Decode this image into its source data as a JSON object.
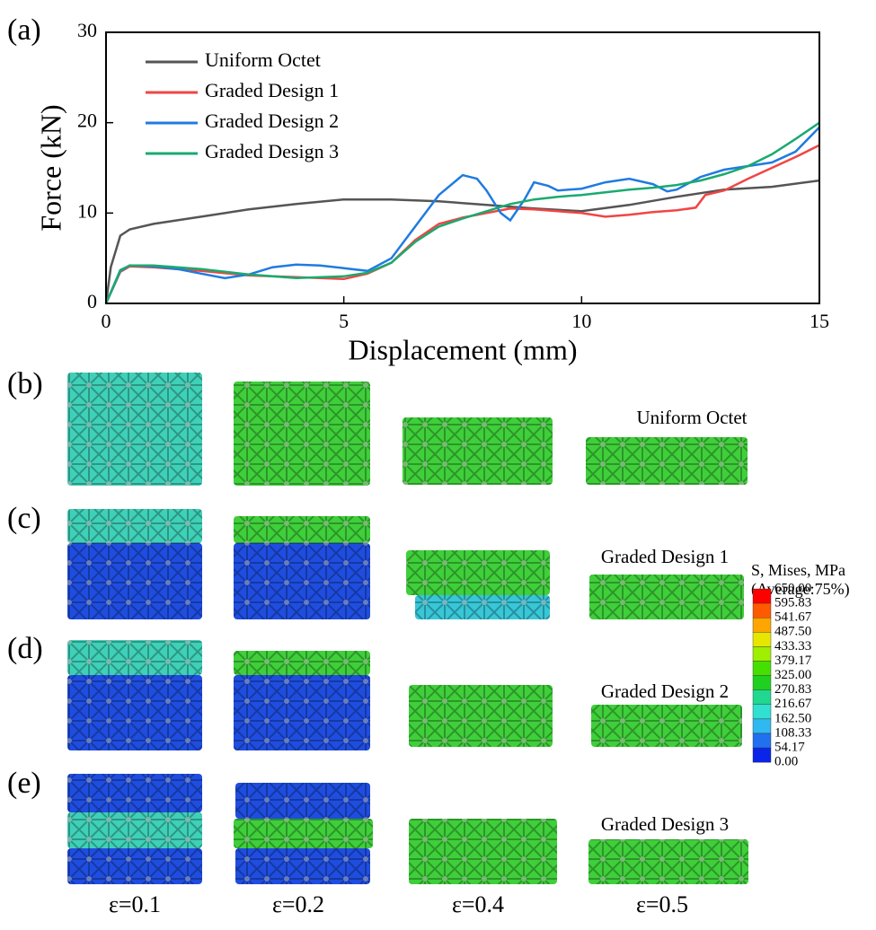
{
  "chart_data": {
    "type": "line",
    "panel_label": "(a)",
    "x_label": "Displacement (mm)",
    "y_label": "Force (kN)",
    "xlim": [
      0,
      15
    ],
    "ylim": [
      0,
      30
    ],
    "xticks": [
      0,
      5,
      10,
      15
    ],
    "yticks": [
      0,
      10,
      20,
      30
    ],
    "legend": "upper left",
    "series": [
      {
        "name": "Uniform Octet",
        "color": "#555555",
        "x": [
          0,
          0.1,
          0.3,
          0.5,
          1,
          2,
          3,
          4,
          5,
          6,
          7,
          8,
          9,
          10,
          11,
          12,
          13,
          14,
          15
        ],
        "values": [
          0,
          4,
          7.5,
          8.2,
          8.8,
          9.6,
          10.4,
          11,
          11.5,
          11.5,
          11.3,
          10.9,
          10.5,
          10.2,
          10.9,
          11.8,
          12.6,
          12.9,
          13.6
        ]
      },
      {
        "name": "Graded Design 1",
        "color": "#f04545",
        "x": [
          0,
          0.3,
          0.5,
          1,
          2,
          3,
          4,
          5,
          5.5,
          6,
          6.5,
          7,
          7.5,
          8,
          8.5,
          9,
          9.5,
          10,
          10.5,
          11,
          11.5,
          12,
          12.4,
          12.6,
          13,
          13.5,
          14,
          14.5,
          15
        ],
        "values": [
          0,
          3.5,
          4.1,
          4.0,
          3.6,
          3.1,
          2.9,
          2.7,
          3.3,
          4.5,
          7,
          8.8,
          9.5,
          10,
          10.5,
          10.4,
          10.2,
          10,
          9.6,
          9.8,
          10.1,
          10.3,
          10.6,
          12,
          12.5,
          13.8,
          15,
          16.2,
          17.5
        ]
      },
      {
        "name": "Graded Design 2",
        "color": "#1f7be0",
        "x": [
          0,
          0.3,
          0.5,
          1,
          1.5,
          2,
          2.5,
          3,
          3.5,
          4,
          4.5,
          5,
          5.5,
          6,
          6.5,
          7,
          7.5,
          7.8,
          8,
          8.3,
          8.5,
          8.8,
          9,
          9.3,
          9.5,
          10,
          10.5,
          11,
          11.5,
          11.8,
          12,
          12.5,
          13,
          13.5,
          14,
          14.5,
          15
        ],
        "values": [
          0,
          3.6,
          4.2,
          4.1,
          3.8,
          3.3,
          2.8,
          3.2,
          4,
          4.3,
          4.2,
          3.9,
          3.6,
          5,
          8.5,
          12,
          14.2,
          13.8,
          12.5,
          10,
          9.2,
          11.5,
          13.4,
          13,
          12.5,
          12.7,
          13.4,
          13.8,
          13.2,
          12.4,
          12.6,
          14,
          14.8,
          15.2,
          15.6,
          16.8,
          19.5
        ]
      },
      {
        "name": "Graded Design 3",
        "color": "#1aaa70",
        "x": [
          0,
          0.3,
          0.5,
          1,
          2,
          3,
          4,
          5,
          5.5,
          6,
          6.5,
          7,
          7.5,
          8,
          8.5,
          9,
          9.5,
          10,
          10.5,
          11,
          11.5,
          12,
          12.5,
          13,
          13.5,
          14,
          14.5,
          15
        ],
        "values": [
          0,
          3.7,
          4.2,
          4.2,
          3.8,
          3.2,
          2.8,
          3.0,
          3.4,
          4.5,
          6.8,
          8.5,
          9.4,
          10.2,
          11,
          11.5,
          11.8,
          12,
          12.3,
          12.6,
          12.8,
          13.1,
          13.6,
          14.3,
          15.2,
          16.5,
          18.2,
          20
        ]
      }
    ]
  },
  "panels": [
    "(b)",
    "(c)",
    "(d)",
    "(e)"
  ],
  "designs": [
    "Uniform Octet",
    "Graded Design 1",
    "Graded Design 2",
    "Graded Design 3"
  ],
  "strains": [
    "ε=0.1",
    "ε=0.2",
    "ε=0.4",
    "ε=0.5"
  ],
  "colorbar": {
    "title": [
      "S, Mises, MPa",
      "(Average:75%)"
    ],
    "labels": [
      "650.00",
      "595.83",
      "541.67",
      "487.50",
      "433.33",
      "379.17",
      "325.00",
      "270.83",
      "216.67",
      "162.50",
      "108.33",
      "54.17",
      "0.00"
    ]
  }
}
